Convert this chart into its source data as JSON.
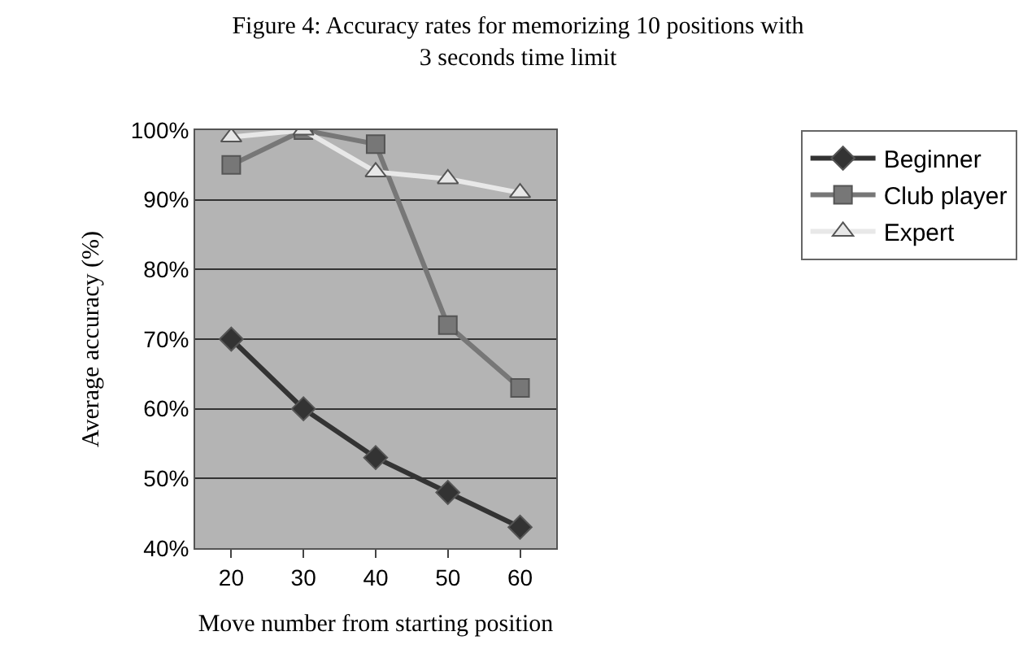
{
  "chart_data": {
    "type": "line",
    "title": "Figure 4: Accuracy rates for memorizing 10 positions with\n3 seconds time limit",
    "xlabel": "Move number from starting position",
    "ylabel": "Average accuracy (%)",
    "categories": [
      "20",
      "30",
      "40",
      "50",
      "60"
    ],
    "series": [
      {
        "name": "Beginner",
        "color": "#333333",
        "marker": "diamond",
        "values": [
          70,
          60,
          53,
          48,
          43
        ]
      },
      {
        "name": "Club player",
        "color": "#777777",
        "marker": "square",
        "values": [
          95,
          100,
          98,
          72,
          63
        ]
      },
      {
        "name": "Expert",
        "color": "#e8e8e8",
        "marker": "triangle",
        "values": [
          99,
          100,
          94,
          93,
          91
        ]
      }
    ],
    "ylim": [
      40,
      100
    ],
    "yticks": [
      {
        "value": 40,
        "label": "40%"
      },
      {
        "value": 50,
        "label": "50%"
      },
      {
        "value": 60,
        "label": "60%"
      },
      {
        "value": 70,
        "label": "70%"
      },
      {
        "value": 80,
        "label": "80%"
      },
      {
        "value": 90,
        "label": "90%"
      },
      {
        "value": 100,
        "label": "100%"
      }
    ],
    "grid": "y",
    "legend": "right"
  }
}
